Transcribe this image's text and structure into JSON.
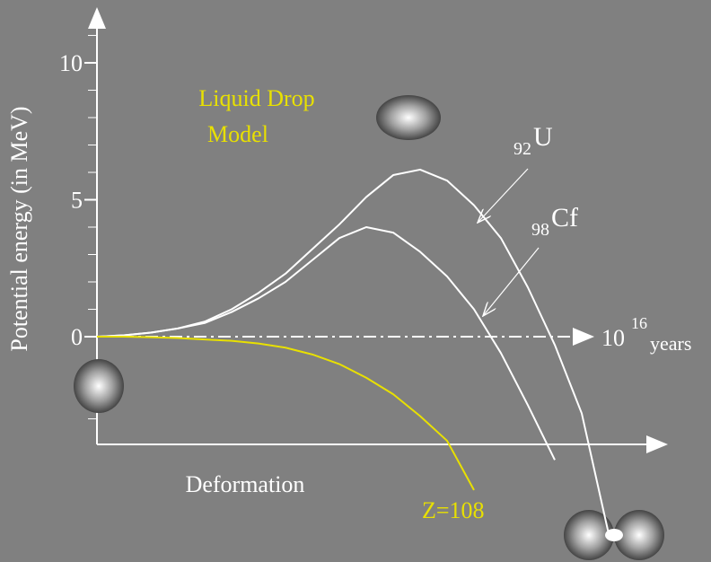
{
  "chart_data": {
    "type": "line",
    "y_label": "Potential energy  (in MeV)",
    "x_label": "Deformation",
    "annotations": {
      "model_line1": "Liquid Drop",
      "model_line2": "Model",
      "u_sub": "92",
      "u_sym": "U",
      "cf_sub": "98",
      "cf_sym": "Cf",
      "z_label": "Z=108",
      "time_base": "10",
      "time_exp": "16",
      "time_unit": "years"
    },
    "categories": [
      null,
      null,
      null,
      null,
      null,
      null,
      null,
      null,
      null,
      null,
      null,
      null,
      null,
      null,
      null,
      null,
      null,
      null,
      null,
      null
    ],
    "series": [
      {
        "color": "#ffffff",
        "values": [
          0,
          0.05,
          0.15,
          0.3,
          0.55,
          1.0,
          1.6,
          2.3,
          3.2,
          4.1,
          5.1,
          5.9,
          6.1,
          5.7,
          4.8,
          3.6,
          1.8,
          -0.3,
          -2.8,
          -7.2
        ]
      },
      {
        "color": "#ffffff",
        "values": [
          0,
          0.05,
          0.15,
          0.3,
          0.5,
          0.9,
          1.4,
          2.0,
          2.8,
          3.6,
          4.0,
          3.8,
          3.1,
          2.2,
          1.0,
          -0.6,
          -2.5,
          -4.5,
          null,
          null
        ]
      },
      {
        "color": "#e8e000",
        "values": [
          0,
          0,
          -0.02,
          -0.05,
          -0.1,
          -0.15,
          -0.25,
          -0.4,
          -0.65,
          -1.0,
          -1.5,
          -2.1,
          -2.9,
          -3.8,
          -5.6,
          null,
          null,
          null,
          null,
          null
        ]
      }
    ],
    "ylim": [
      -3.9,
      11.9
    ],
    "yticks": [
      0,
      5,
      10
    ]
  }
}
